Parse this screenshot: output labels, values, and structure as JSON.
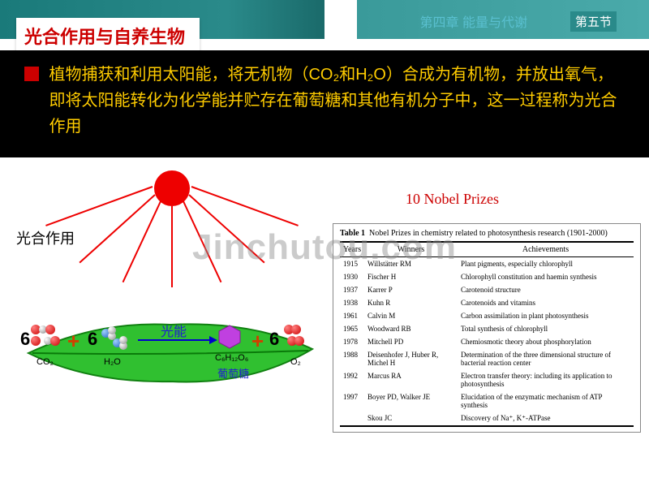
{
  "header": {
    "chapter": "第四章 能量与代谢",
    "section": "第五节"
  },
  "title": "光合作用与自养生物",
  "main_paragraph": "植物捕获和利用太阳能，将无机物（CO₂和H₂O）合成为有机物，并放出氧气，即将太阳能转化为化学能并贮存在葡萄糖和其他有机分子中，这一过程称为光合作用",
  "diagram": {
    "label": "光合作用",
    "light": "光能",
    "glucose_label": "葡萄糖",
    "reactants": {
      "co2": "CO₂",
      "h2o": "H₂O"
    },
    "products": {
      "glucose": "C₆H₁₂O₆",
      "o2": "O₂"
    },
    "coefficient": "6",
    "colors": {
      "sun": "#ee0000",
      "leaf_light": "#40d040",
      "leaf_dark": "#109010",
      "arrow": "#0000cc",
      "hexagon": "#c040e0"
    }
  },
  "nobel_title": "10 Nobel Prizes",
  "nobel_table": {
    "caption_bold": "Table 1",
    "caption": "Nobel Prizes in chemistry related to photosynthesis research (1901-2000)",
    "columns": [
      "Years",
      "Winners",
      "Achievements"
    ],
    "rows": [
      [
        "1915",
        "Willstätter RM",
        "Plant pigments, especially chlorophyll"
      ],
      [
        "1930",
        "Fischer H",
        "Chlorophyll constitution and haemin synthesis"
      ],
      [
        "1937",
        "Karrer P",
        "Carotenoid structure"
      ],
      [
        "1938",
        "Kuhn R",
        "Carotenoids and vitamins"
      ],
      [
        "1961",
        "Calvin M",
        "Carbon assimilation in plant photosynthesis"
      ],
      [
        "1965",
        "Woodward RB",
        "Total synthesis of chlorophyll"
      ],
      [
        "1978",
        "Mitchell PD",
        "Chemiosmotic theory about phosphorylation"
      ],
      [
        "1988",
        "Deisenhofer J, Huber R, Michel H",
        "Determination of the three dimensional structure of bacterial reaction center"
      ],
      [
        "1992",
        "Marcus RA",
        "Electron transfer theory: including its application to photosynthesis"
      ],
      [
        "1997",
        "Boyer PD, Walker JE",
        "Elucidation of the enzymatic mechanism of ATP synthesis"
      ],
      [
        "",
        "Skou JC",
        "Discovery of Na⁺, K⁺-ATPase"
      ]
    ]
  },
  "watermark": "Jinchutou.com"
}
